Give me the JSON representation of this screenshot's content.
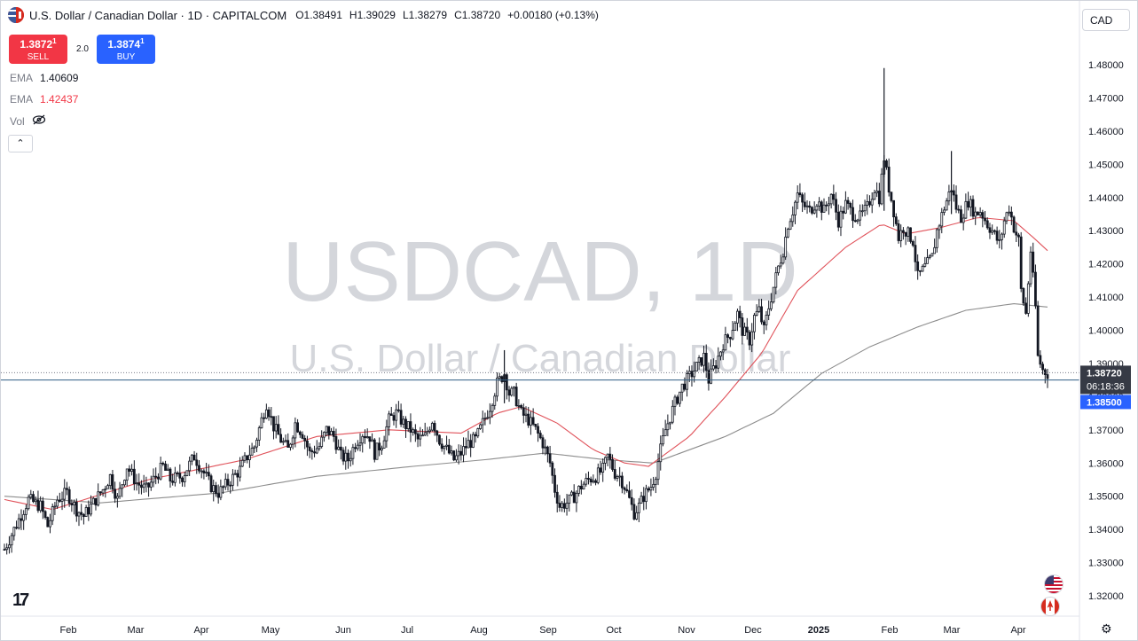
{
  "header": {
    "title": "U.S. Dollar / Canadian Dollar · 1D · CAPITALCOM",
    "ohlc": [
      {
        "k": "O",
        "v": "1.38491"
      },
      {
        "k": "H",
        "v": "1.39029"
      },
      {
        "k": "L",
        "v": "1.38279"
      },
      {
        "k": "C",
        "v": "1.38720"
      }
    ],
    "change": "+0.00180 (+0.13%)"
  },
  "trade": {
    "sell_price": "1.3872",
    "sell_price_sup": "1",
    "sell_label": "SELL",
    "buy_price": "1.3874",
    "buy_price_sup": "1",
    "buy_label": "BUY",
    "spread": "2.0"
  },
  "indicators": [
    {
      "name": "EMA",
      "value": "1.40609",
      "color": "#131722"
    },
    {
      "name": "EMA",
      "value": "1.42437",
      "color": "#f23645"
    },
    {
      "name": "Vol",
      "value": "",
      "color": "#131722"
    }
  ],
  "currency_button": "CAD",
  "watermark": {
    "line1": "USDCAD, 1D",
    "line2": "U.S. Dollar / Canadian Dollar"
  },
  "price_labels": {
    "last": "1.38720",
    "countdown": "06:18:36",
    "level": "1.38500"
  },
  "colors": {
    "ema_fast": "#e0525a",
    "ema_slow": "#8c8c8c",
    "candle": "#131722",
    "level_line": "#2f5d82",
    "level_label_bg": "#2962ff",
    "last_label_bg": "#363a45"
  },
  "chart_data": {
    "type": "candlestick",
    "title": "U.S. Dollar / Canadian Dollar · 1D · CAPITALCOM",
    "y_axis": {
      "ticks": [
        "1.48000",
        "1.47000",
        "1.46000",
        "1.45000",
        "1.44000",
        "1.43000",
        "1.42000",
        "1.41000",
        "1.40000",
        "1.39000",
        "1.38000",
        "1.37000",
        "1.36000",
        "1.35000",
        "1.34000",
        "1.33000",
        "1.32000"
      ],
      "range": [
        1.3145,
        1.4835
      ]
    },
    "x_axis": {
      "ticks": [
        {
          "label": "Feb",
          "bold": false
        },
        {
          "label": "Mar",
          "bold": false
        },
        {
          "label": "Apr",
          "bold": false
        },
        {
          "label": "May",
          "bold": false
        },
        {
          "label": "Jun",
          "bold": false
        },
        {
          "label": "Jul",
          "bold": false
        },
        {
          "label": "Aug",
          "bold": false
        },
        {
          "label": "Sep",
          "bold": false
        },
        {
          "label": "Oct",
          "bold": false
        },
        {
          "label": "Nov",
          "bold": false
        },
        {
          "label": "Dec",
          "bold": false
        },
        {
          "label": "2025",
          "bold": true
        },
        {
          "label": "Feb",
          "bold": false
        },
        {
          "label": "Mar",
          "bold": false
        },
        {
          "label": "Apr",
          "bold": false
        }
      ]
    },
    "close_path": [
      [
        0,
        1.334
      ],
      [
        6,
        1.343
      ],
      [
        10,
        1.349
      ],
      [
        15,
        1.347
      ],
      [
        18,
        1.341
      ],
      [
        22,
        1.349
      ],
      [
        26,
        1.351
      ],
      [
        30,
        1.346
      ],
      [
        33,
        1.344
      ],
      [
        38,
        1.349
      ],
      [
        41,
        1.352
      ],
      [
        44,
        1.356
      ],
      [
        47,
        1.349
      ],
      [
        51,
        1.359
      ],
      [
        55,
        1.354
      ],
      [
        59,
        1.352
      ],
      [
        63,
        1.356
      ],
      [
        66,
        1.359
      ],
      [
        69,
        1.355
      ],
      [
        74,
        1.356
      ],
      [
        79,
        1.362
      ],
      [
        83,
        1.357
      ],
      [
        86,
        1.353
      ],
      [
        89,
        1.351
      ],
      [
        93,
        1.354
      ],
      [
        98,
        1.358
      ],
      [
        101,
        1.362
      ],
      [
        104,
        1.365
      ],
      [
        107,
        1.373
      ],
      [
        109,
        1.378
      ],
      [
        112,
        1.371
      ],
      [
        115,
        1.367
      ],
      [
        118,
        1.364
      ],
      [
        121,
        1.372
      ],
      [
        124,
        1.369
      ],
      [
        127,
        1.363
      ],
      [
        131,
        1.365
      ],
      [
        134,
        1.37
      ],
      [
        137,
        1.368
      ],
      [
        140,
        1.362
      ],
      [
        143,
        1.361
      ],
      [
        146,
        1.366
      ],
      [
        149,
        1.369
      ],
      [
        152,
        1.368
      ],
      [
        154,
        1.363
      ],
      [
        157,
        1.366
      ],
      [
        160,
        1.373
      ],
      [
        163,
        1.375
      ],
      [
        166,
        1.372
      ],
      [
        169,
        1.37
      ],
      [
        172,
        1.367
      ],
      [
        175,
        1.368
      ],
      [
        178,
        1.373
      ],
      [
        181,
        1.367
      ],
      [
        184,
        1.364
      ],
      [
        187,
        1.361
      ],
      [
        190,
        1.363
      ],
      [
        193,
        1.366
      ],
      [
        196,
        1.367
      ],
      [
        199,
        1.372
      ],
      [
        202,
        1.377
      ],
      [
        205,
        1.384
      ],
      [
        208,
        1.387
      ],
      [
        210,
        1.381
      ],
      [
        212,
        1.381
      ],
      [
        215,
        1.375
      ],
      [
        218,
        1.373
      ],
      [
        221,
        1.37
      ],
      [
        224,
        1.366
      ],
      [
        227,
        1.36
      ],
      [
        229,
        1.352
      ],
      [
        231,
        1.347
      ],
      [
        234,
        1.348
      ],
      [
        237,
        1.35
      ],
      [
        240,
        1.353
      ],
      [
        243,
        1.355
      ],
      [
        246,
        1.356
      ],
      [
        249,
        1.358
      ],
      [
        251,
        1.362
      ],
      [
        254,
        1.357
      ],
      [
        256,
        1.356
      ],
      [
        258,
        1.353
      ],
      [
        260,
        1.349
      ],
      [
        262,
        1.345
      ],
      [
        264,
        1.347
      ],
      [
        266,
        1.35
      ],
      [
        269,
        1.353
      ],
      [
        271,
        1.357
      ],
      [
        273,
        1.364
      ],
      [
        275,
        1.37
      ],
      [
        277,
        1.374
      ],
      [
        279,
        1.378
      ],
      [
        282,
        1.383
      ],
      [
        285,
        1.386
      ],
      [
        288,
        1.389
      ],
      [
        291,
        1.392
      ],
      [
        293,
        1.385
      ],
      [
        296,
        1.39
      ],
      [
        299,
        1.396
      ],
      [
        302,
        1.399
      ],
      [
        305,
        1.405
      ],
      [
        307,
        1.4
      ],
      [
        310,
        1.397
      ],
      [
        312,
        1.404
      ],
      [
        314,
        1.406
      ],
      [
        316,
        1.4
      ],
      [
        318,
        1.407
      ],
      [
        320,
        1.413
      ],
      [
        322,
        1.419
      ],
      [
        324,
        1.424
      ],
      [
        326,
        1.432
      ],
      [
        328,
        1.436
      ],
      [
        330,
        1.441
      ],
      [
        332,
        1.438
      ],
      [
        335,
        1.436
      ],
      [
        338,
        1.439
      ],
      [
        341,
        1.436
      ],
      [
        344,
        1.441
      ],
      [
        347,
        1.433
      ],
      [
        350,
        1.438
      ],
      [
        353,
        1.435
      ],
      [
        356,
        1.434
      ],
      [
        359,
        1.437
      ],
      [
        362,
        1.443
      ],
      [
        364,
        1.44
      ],
      [
        366,
        1.452
      ],
      [
        368,
        1.443
      ],
      [
        370,
        1.436
      ],
      [
        372,
        1.428
      ],
      [
        374,
        1.431
      ],
      [
        376,
        1.429
      ],
      [
        378,
        1.427
      ],
      [
        380,
        1.416
      ],
      [
        383,
        1.419
      ],
      [
        386,
        1.422
      ],
      [
        388,
        1.43
      ],
      [
        391,
        1.437
      ],
      [
        394,
        1.443
      ],
      [
        396,
        1.437
      ],
      [
        398,
        1.434
      ],
      [
        401,
        1.439
      ],
      [
        404,
        1.435
      ],
      [
        406,
        1.436
      ],
      [
        409,
        1.432
      ],
      [
        411,
        1.43
      ],
      [
        414,
        1.426
      ],
      [
        416,
        1.433
      ],
      [
        418,
        1.437
      ],
      [
        420,
        1.431
      ],
      [
        422,
        1.427
      ],
      [
        423,
        1.412
      ],
      [
        425,
        1.405
      ],
      [
        427,
        1.424
      ],
      [
        429,
        1.407
      ],
      [
        430,
        1.392
      ],
      [
        432,
        1.388
      ],
      [
        434,
        1.387
      ]
    ],
    "ema_fast": [
      [
        0,
        1.349
      ],
      [
        20,
        1.346
      ],
      [
        60,
        1.355
      ],
      [
        100,
        1.361
      ],
      [
        130,
        1.368
      ],
      [
        160,
        1.37
      ],
      [
        190,
        1.369
      ],
      [
        205,
        1.375
      ],
      [
        215,
        1.377
      ],
      [
        230,
        1.372
      ],
      [
        245,
        1.364
      ],
      [
        258,
        1.36
      ],
      [
        268,
        1.359
      ],
      [
        285,
        1.368
      ],
      [
        300,
        1.38
      ],
      [
        315,
        1.393
      ],
      [
        330,
        1.412
      ],
      [
        350,
        1.425
      ],
      [
        365,
        1.432
      ],
      [
        375,
        1.429
      ],
      [
        390,
        1.431
      ],
      [
        405,
        1.434
      ],
      [
        420,
        1.433
      ],
      [
        428,
        1.428
      ],
      [
        434,
        1.424
      ]
    ],
    "ema_slow": [
      [
        0,
        1.35
      ],
      [
        40,
        1.348
      ],
      [
        90,
        1.351
      ],
      [
        130,
        1.356
      ],
      [
        170,
        1.359
      ],
      [
        200,
        1.361
      ],
      [
        225,
        1.363
      ],
      [
        250,
        1.361
      ],
      [
        270,
        1.36
      ],
      [
        300,
        1.368
      ],
      [
        320,
        1.375
      ],
      [
        340,
        1.387
      ],
      [
        360,
        1.395
      ],
      [
        380,
        1.401
      ],
      [
        400,
        1.406
      ],
      [
        420,
        1.408
      ],
      [
        434,
        1.407
      ]
    ],
    "levels": {
      "last": 1.3872,
      "support": 1.385
    }
  }
}
